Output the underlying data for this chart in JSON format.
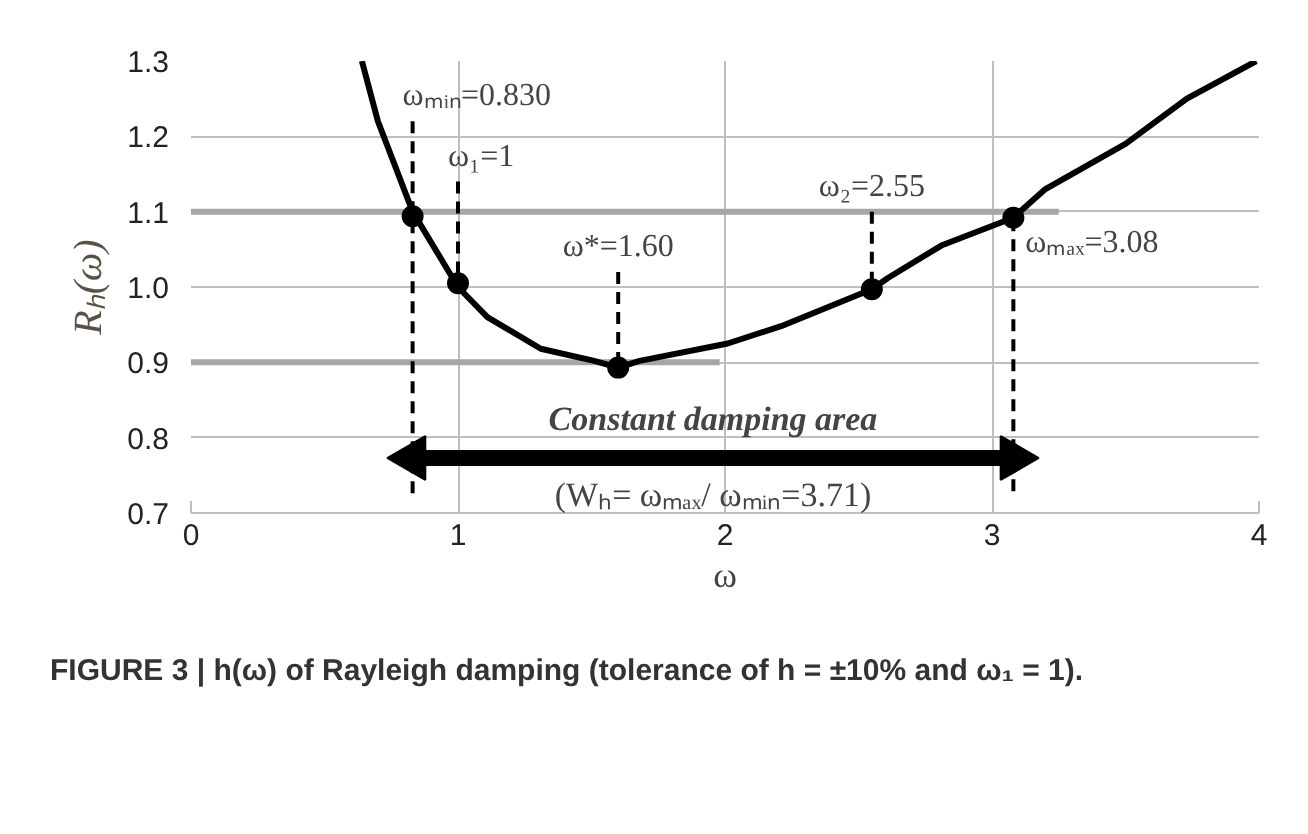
{
  "chart_data": {
    "type": "line",
    "title": "FIGURE 3 | h(ω) of Rayleigh damping (tolerance of h = ±10% and ω₁ = 1).",
    "xlabel": "ω",
    "ylabel": "Rₕ(ω)",
    "xlim": [
      0,
      4
    ],
    "ylim": [
      0.7,
      1.3
    ],
    "xticks": [
      0,
      1,
      2,
      3,
      4
    ],
    "yticks": [
      {
        "value": 0.7,
        "label": "0.7"
      },
      {
        "value": 0.8,
        "label": "0.8"
      },
      {
        "value": 0.9,
        "label": "0.9"
      },
      {
        "value": 1.0,
        "label": "1.0"
      },
      {
        "value": 1.1,
        "label": "1.1"
      },
      {
        "value": 1.2,
        "label": "1.2"
      },
      {
        "value": 1.3,
        "label": "1.3"
      }
    ],
    "grid": true,
    "series": [
      {
        "color": "#a6a6a6",
        "x": [
          0,
          3.25
        ],
        "values": [
          1.1,
          1.1
        ]
      },
      {
        "color": "#a6a6a6",
        "x": [
          0,
          1.98
        ],
        "values": [
          0.9,
          0.9
        ]
      },
      {
        "color": "#000000",
        "x": [
          0.64,
          0.7,
          0.83,
          1.0,
          1.11,
          1.31,
          1.51,
          1.6,
          1.68,
          2.01,
          2.21,
          2.55,
          2.61,
          2.81,
          3.08,
          3.2,
          3.5,
          3.73,
          3.99
        ],
        "values": [
          1.3,
          1.22,
          1.1,
          1.0,
          0.96,
          0.918,
          0.902,
          0.893,
          0.902,
          0.925,
          0.948,
          0.997,
          1.012,
          1.055,
          1.092,
          1.13,
          1.19,
          1.25,
          1.3
        ]
      },
      {
        "type": "scatter",
        "marker": "circle",
        "color": "#000000",
        "x": [
          0.83,
          1.0,
          1.6,
          2.55,
          3.08
        ],
        "values": [
          1.094,
          1.005,
          0.893,
          0.997,
          1.092
        ]
      },
      {
        "color": "#000000",
        "line_style": "dashed",
        "x": [
          0.83,
          0.83
        ],
        "values": [
          1.22,
          0.72
        ]
      },
      {
        "color": "#000000",
        "line_style": "dashed",
        "x": [
          1.0,
          1.0
        ],
        "values": [
          1.14,
          1.005
        ]
      },
      {
        "color": "#000000",
        "line_style": "dashed",
        "x": [
          1.6,
          1.6
        ],
        "values": [
          1.02,
          0.893
        ]
      },
      {
        "color": "#000000",
        "line_style": "dashed",
        "x": [
          2.55,
          2.55
        ],
        "values": [
          1.1,
          0.997
        ]
      },
      {
        "color": "#000000",
        "line_style": "dashed",
        "x": [
          3.08,
          3.08
        ],
        "values": [
          1.09,
          0.72
        ]
      },
      {
        "color": "#000000",
        "marker": "triangle",
        "x": [
          0.83,
          3.08
        ],
        "values": [
          0.773,
          0.773
        ]
      }
    ],
    "annotations": [
      {
        "text": "ωₘᵢₙ=0.830",
        "x": 0.83,
        "y": 1.22
      },
      {
        "text": "ω₁=1",
        "x": 1.0,
        "y": 1.14
      },
      {
        "text": "ω*=1.60",
        "x": 1.6,
        "y": 1.02
      },
      {
        "text": "ω₂=2.55",
        "x": 2.55,
        "y": 1.1
      },
      {
        "text": "ωₘₐₓ=3.08",
        "x": 3.08,
        "y": 1.09
      },
      "Constant damping area",
      "(Wₕ= ωₘₐₓ/ ωₘᵢₙ=3.71)"
    ]
  }
}
